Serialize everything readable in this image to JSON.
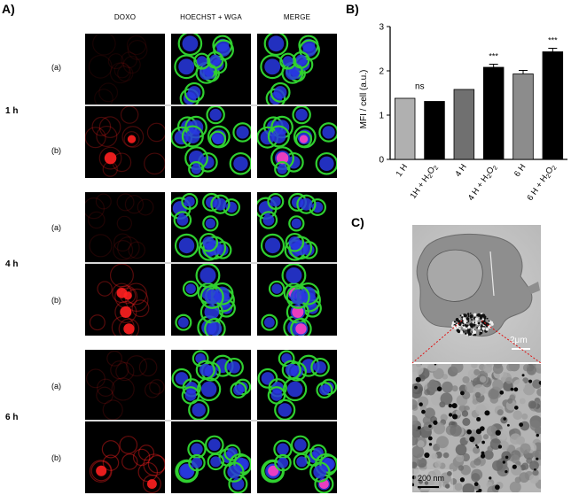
{
  "panelA": {
    "letter": "A)",
    "columns": [
      "DOXO",
      "HOECHST + WGA",
      "MERGE"
    ],
    "times": [
      "1 h",
      "4 h",
      "6 h"
    ],
    "rows": [
      "(a)",
      "(b)"
    ]
  },
  "panelB": {
    "letter": "B)"
  },
  "chart_data": {
    "type": "bar",
    "categories": [
      "1 H",
      "1H + H2O2",
      "4 H",
      "4 H + H2O2",
      "6 H",
      "6 H + H2O2"
    ],
    "values": [
      1.38,
      1.31,
      1.58,
      2.08,
      1.93,
      2.43
    ],
    "errors": [
      0.0,
      0.0,
      0.0,
      0.07,
      0.08,
      0.08
    ],
    "bar_colors": [
      "#b0b0b0",
      "#000000",
      "#707070",
      "#000000",
      "#8c8c8c",
      "#000000"
    ],
    "ylabel": "MFI / cell (a.u.)",
    "ylim": [
      0,
      3
    ],
    "yticks": [
      "0",
      "1",
      "2",
      "3"
    ],
    "annotations": [
      "ns",
      "***",
      "***"
    ],
    "grid": false
  },
  "panelC": {
    "letter": "C)",
    "scale_top": "2μm",
    "scale_bottom": "200 nm"
  },
  "colors": {
    "doxo": "#ff2020",
    "wga": "#30d030",
    "hoechst": "#2838e0",
    "zoom_line": "#e01010"
  }
}
